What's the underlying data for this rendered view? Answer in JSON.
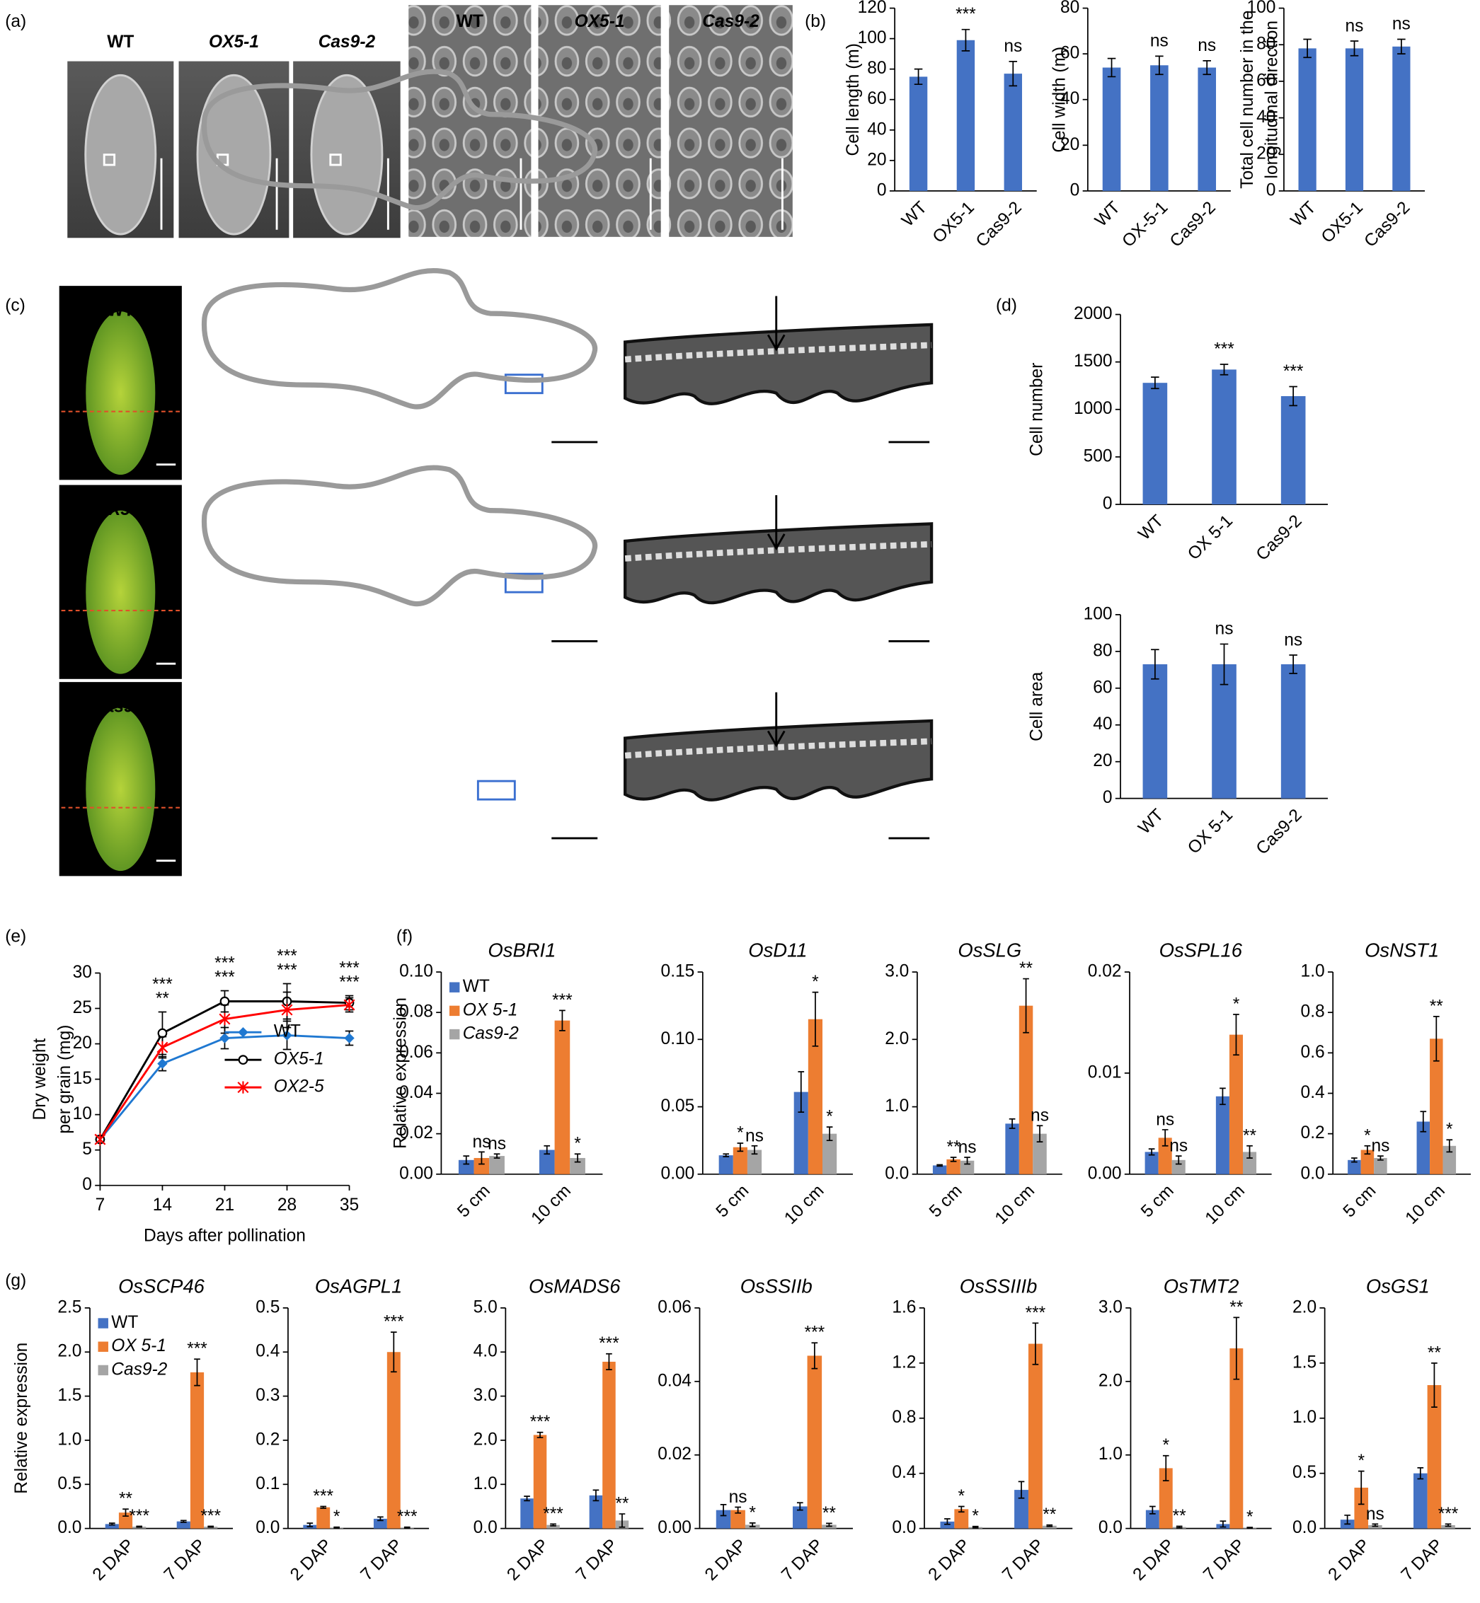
{
  "panel_labels": [
    "(a)",
    "(b)",
    "(c)",
    "(d)",
    "(e)",
    "(f)",
    "(g)"
  ],
  "panel_a": {
    "labels": [
      "WT",
      "OX5-1",
      "Cas9-2"
    ]
  },
  "panel_c": {
    "labels": [
      "WT",
      "OX5-1",
      "Cas9-2"
    ]
  },
  "chart_data": [
    {
      "type": "bar",
      "ylabel": "Cell length (m)",
      "categories": [
        "WT",
        "OX5-1",
        "Cas9-2"
      ],
      "values": [
        75,
        99,
        77
      ],
      "errors": [
        5,
        7,
        8
      ],
      "annotations": [
        null,
        "***",
        "ns"
      ],
      "color": "#4472c4",
      "ylim": [
        0,
        120
      ],
      "yticks": [
        0,
        20,
        40,
        60,
        80,
        100,
        120
      ]
    },
    {
      "type": "bar",
      "ylabel": "Cell width (m)",
      "categories": [
        "WT",
        "OX-5-1",
        "Cas9-2"
      ],
      "values": [
        54,
        55,
        54
      ],
      "errors": [
        4,
        4,
        3
      ],
      "annotations": [
        null,
        "ns",
        "ns"
      ],
      "color": "#4472c4",
      "ylim": [
        0,
        80
      ],
      "yticks": [
        0,
        20,
        40,
        60,
        80
      ]
    },
    {
      "type": "bar",
      "ylabel": [
        "Total cell number in the",
        "longitudinal direction"
      ],
      "categories": [
        "WT",
        "OX5-1",
        "Cas9-2"
      ],
      "values": [
        78,
        78,
        79
      ],
      "errors": [
        5,
        4,
        4
      ],
      "annotations": [
        null,
        "ns",
        "ns"
      ],
      "color": "#4472c4",
      "ylim": [
        0,
        100
      ],
      "yticks": [
        0,
        20,
        40,
        60,
        80,
        100
      ]
    },
    {
      "type": "bar",
      "ylabel": "Cell number",
      "categories": [
        "WT",
        "OX 5-1",
        "Cas9-2"
      ],
      "values": [
        1280,
        1420,
        1140
      ],
      "errors": [
        60,
        55,
        100
      ],
      "annotations": [
        null,
        "***",
        "***"
      ],
      "color": "#4472c4",
      "ylim": [
        0,
        2000
      ],
      "yticks": [
        0,
        500,
        1000,
        1500,
        2000
      ]
    },
    {
      "type": "bar",
      "ylabel": "Cell area",
      "categories": [
        "WT",
        "OX 5-1",
        "Cas9-2"
      ],
      "values": [
        73,
        73,
        73
      ],
      "errors": [
        8,
        11,
        5
      ],
      "annotations": [
        null,
        "ns",
        "ns"
      ],
      "color": "#4472c4",
      "ylim": [
        0,
        100
      ],
      "yticks": [
        0,
        20,
        40,
        60,
        80,
        100
      ]
    },
    {
      "type": "line",
      "ylabel": [
        "Dry weight",
        "per grain (mg)"
      ],
      "xlabel": "Days after pollination",
      "x": [
        7,
        14,
        21,
        28,
        35
      ],
      "xlim": [
        7,
        35
      ],
      "xticks": [
        7,
        14,
        21,
        28,
        35
      ],
      "ylim": [
        0,
        30
      ],
      "yticks": [
        0,
        5,
        10,
        15,
        20,
        25,
        30
      ],
      "legend": "lower right",
      "series": [
        {
          "name": "WT",
          "color": "#1f78d1",
          "marker": "diamond",
          "values": [
            6.5,
            17.2,
            20.8,
            21.2,
            20.8
          ],
          "errors": [
            0.5,
            1,
            1.5,
            2,
            1
          ]
        },
        {
          "name": "OX5-1",
          "color": "#000000",
          "marker": "circle",
          "values": [
            6.5,
            21.5,
            26,
            26,
            25.8
          ],
          "errors": [
            0.5,
            3,
            1.5,
            2.5,
            1
          ],
          "annotations": [
            null,
            "***",
            "***",
            "***",
            "***"
          ]
        },
        {
          "name": "OX2-5",
          "color": "#ff0000",
          "marker": "star",
          "values": [
            6.5,
            19.5,
            23.5,
            24.8,
            25.5
          ],
          "errors": [
            0.5,
            1.5,
            2,
            2.5,
            1
          ],
          "annotations": [
            null,
            "**",
            "***",
            "***",
            "***"
          ]
        }
      ]
    },
    {
      "type": "grouped",
      "title": "OsBRI1",
      "ylabel": "Relative expression",
      "categories": [
        "5 cm",
        "10 cm"
      ],
      "legend": "upper left",
      "ylim": [
        0,
        0.1
      ],
      "yticks": [
        {
          "value": 0,
          "label": "0.00"
        },
        0.02,
        0.04,
        0.06,
        0.08,
        {
          "value": 0.1,
          "label": "0.10"
        }
      ],
      "series": [
        {
          "name": "WT",
          "color": "#4472c4",
          "values": [
            0.007,
            0.012
          ],
          "errors": [
            0.002,
            0.002
          ]
        },
        {
          "name": "OX 5-1",
          "color": "#ed7d31",
          "values": [
            0.008,
            0.076
          ],
          "errors": [
            0.003,
            0.005
          ],
          "annotations": [
            "ns",
            "***"
          ]
        },
        {
          "name": "Cas9-2",
          "color": "#a5a5a5",
          "values": [
            0.009,
            0.008
          ],
          "errors": [
            0.001,
            0.002
          ],
          "annotations": [
            "ns",
            "*"
          ]
        }
      ]
    },
    {
      "type": "grouped",
      "title": "OsD11",
      "categories": [
        "5 cm",
        "10 cm"
      ],
      "ylim": [
        0,
        0.15
      ],
      "yticks": [
        {
          "value": 0,
          "label": "0.00"
        },
        0.05,
        {
          "value": 0.1,
          "label": "0.10"
        },
        0.15
      ],
      "series": [
        {
          "color": "#4472c4",
          "values": [
            0.014,
            0.061
          ],
          "errors": [
            0.001,
            0.015
          ]
        },
        {
          "color": "#ed7d31",
          "values": [
            0.02,
            0.115
          ],
          "errors": [
            0.003,
            0.02
          ],
          "annotations": [
            "*",
            "*"
          ]
        },
        {
          "color": "#a5a5a5",
          "values": [
            0.018,
            0.03
          ],
          "errors": [
            0.003,
            0.005
          ],
          "annotations": [
            "ns",
            "*"
          ]
        }
      ]
    },
    {
      "type": "grouped",
      "title": "OsSLG",
      "categories": [
        "5 cm",
        "10 cm"
      ],
      "ylim": [
        0,
        3
      ],
      "yticks": [
        {
          "value": 0,
          "label": "0.0"
        },
        {
          "value": 1,
          "label": "1.0"
        },
        {
          "value": 2,
          "label": "2.0"
        },
        {
          "value": 3,
          "label": "3.0"
        }
      ],
      "series": [
        {
          "color": "#4472c4",
          "values": [
            0.13,
            0.75
          ],
          "errors": [
            0.01,
            0.07
          ]
        },
        {
          "color": "#ed7d31",
          "values": [
            0.22,
            2.5
          ],
          "errors": [
            0.03,
            0.4
          ],
          "annotations": [
            "**",
            "**"
          ]
        },
        {
          "color": "#a5a5a5",
          "values": [
            0.2,
            0.6
          ],
          "errors": [
            0.05,
            0.12
          ],
          "annotations": [
            "ns",
            "ns"
          ]
        }
      ]
    },
    {
      "type": "grouped",
      "title": "OsSPL16",
      "categories": [
        "5 cm",
        "10 cm"
      ],
      "ylim": [
        0,
        0.02
      ],
      "yticks": [
        {
          "value": 0,
          "label": "0.00"
        },
        0.01,
        0.02
      ],
      "series": [
        {
          "color": "#4472c4",
          "values": [
            0.0022,
            0.0077
          ],
          "errors": [
            0.0003,
            0.0008
          ]
        },
        {
          "color": "#ed7d31",
          "values": [
            0.0036,
            0.0138
          ],
          "errors": [
            0.0008,
            0.002
          ],
          "annotations": [
            "ns",
            "*"
          ]
        },
        {
          "color": "#a5a5a5",
          "values": [
            0.0014,
            0.0022
          ],
          "errors": [
            0.0004,
            0.0006
          ],
          "annotations": [
            "ns",
            "**"
          ]
        }
      ]
    },
    {
      "type": "grouped",
      "title": "OsNST1",
      "categories": [
        "5 cm",
        "10 cm"
      ],
      "ylim": [
        0,
        1
      ],
      "yticks": [
        {
          "value": 0,
          "label": "0.0"
        },
        0.2,
        0.4,
        0.6,
        0.8,
        {
          "value": 1,
          "label": "1.0"
        }
      ],
      "series": [
        {
          "color": "#4472c4",
          "values": [
            0.07,
            0.26
          ],
          "errors": [
            0.01,
            0.05
          ]
        },
        {
          "color": "#ed7d31",
          "values": [
            0.12,
            0.67
          ],
          "errors": [
            0.02,
            0.11
          ],
          "annotations": [
            "*",
            "**"
          ]
        },
        {
          "color": "#a5a5a5",
          "values": [
            0.08,
            0.14
          ],
          "errors": [
            0.01,
            0.03
          ],
          "annotations": [
            "ns",
            "*"
          ]
        }
      ]
    },
    {
      "type": "grouped",
      "title": "OsSCP46",
      "ylabel": "Relative expression",
      "categories": [
        "2 DAP",
        "7 DAP"
      ],
      "legend": "upper left",
      "ylim": [
        0,
        2.5
      ],
      "yticks": [
        {
          "value": 0,
          "label": "0.0"
        },
        0.5,
        {
          "value": 1,
          "label": "1.0"
        },
        1.5,
        {
          "value": 2,
          "label": "2.0"
        },
        2.5
      ],
      "series": [
        {
          "name": "WT",
          "color": "#4472c4",
          "values": [
            0.05,
            0.08
          ],
          "errors": [
            0.01,
            0.01
          ]
        },
        {
          "name": "OX 5-1",
          "color": "#ed7d31",
          "values": [
            0.18,
            1.77
          ],
          "errors": [
            0.04,
            0.15
          ],
          "annotations": [
            "**",
            "***"
          ]
        },
        {
          "name": "Cas9-2",
          "color": "#a5a5a5",
          "values": [
            0.02,
            0.02
          ],
          "errors": [
            0.005,
            0.005
          ],
          "annotations": [
            "***",
            "***"
          ]
        }
      ]
    },
    {
      "type": "grouped",
      "title": "OsAGPL1",
      "categories": [
        "2 DAP",
        "7 DAP"
      ],
      "ylim": [
        0,
        0.5
      ],
      "yticks": [
        {
          "value": 0,
          "label": "0.0"
        },
        0.1,
        0.2,
        0.3,
        0.4,
        0.5
      ],
      "series": [
        {
          "color": "#4472c4",
          "values": [
            0.008,
            0.022
          ],
          "errors": [
            0.004,
            0.004
          ]
        },
        {
          "color": "#ed7d31",
          "values": [
            0.048,
            0.4
          ],
          "errors": [
            0.002,
            0.045
          ],
          "annotations": [
            "***",
            "***"
          ]
        },
        {
          "color": "#a5a5a5",
          "values": [
            0.002,
            0.002
          ],
          "errors": [
            0.001,
            0.001
          ],
          "annotations": [
            "*",
            "***"
          ]
        }
      ]
    },
    {
      "type": "grouped",
      "title": "OsMADS6",
      "categories": [
        "2 DAP",
        "7 DAP"
      ],
      "ylim": [
        0,
        5
      ],
      "yticks": [
        {
          "value": 0,
          "label": "0.0"
        },
        {
          "value": 1,
          "label": "1.0"
        },
        {
          "value": 2,
          "label": "2.0"
        },
        {
          "value": 3,
          "label": "3.0"
        },
        {
          "value": 4,
          "label": "4.0"
        },
        {
          "value": 5,
          "label": "5.0"
        }
      ],
      "series": [
        {
          "color": "#4472c4",
          "values": [
            0.68,
            0.75
          ],
          "errors": [
            0.05,
            0.12
          ]
        },
        {
          "color": "#ed7d31",
          "values": [
            2.12,
            3.78
          ],
          "errors": [
            0.06,
            0.18
          ],
          "annotations": [
            "***",
            "***"
          ]
        },
        {
          "color": "#a5a5a5",
          "values": [
            0.08,
            0.18
          ],
          "errors": [
            0.02,
            0.15
          ],
          "annotations": [
            "***",
            "**"
          ]
        }
      ]
    },
    {
      "type": "grouped",
      "title": "OsSSIIb",
      "categories": [
        "2 DAP",
        "7 DAP"
      ],
      "ylim": [
        0,
        0.06
      ],
      "yticks": [
        {
          "value": 0,
          "label": "0.00"
        },
        0.02,
        0.04,
        0.06
      ],
      "series": [
        {
          "color": "#4472c4",
          "values": [
            0.005,
            0.006
          ],
          "errors": [
            0.0015,
            0.001
          ]
        },
        {
          "color": "#ed7d31",
          "values": [
            0.005,
            0.047
          ],
          "errors": [
            0.0008,
            0.0035
          ],
          "annotations": [
            "ns",
            "***"
          ]
        },
        {
          "color": "#a5a5a5",
          "values": [
            0.001,
            0.001
          ],
          "errors": [
            0.0005,
            0.0004
          ],
          "annotations": [
            "*",
            "**"
          ]
        }
      ]
    },
    {
      "type": "grouped",
      "title": "OsSSIIIb",
      "categories": [
        "2 DAP",
        "7 DAP"
      ],
      "ylim": [
        0,
        1.6
      ],
      "yticks": [
        {
          "value": 0,
          "label": "0.0"
        },
        0.4,
        0.8,
        1.2,
        1.6
      ],
      "series": [
        {
          "color": "#4472c4",
          "values": [
            0.05,
            0.28
          ],
          "errors": [
            0.02,
            0.06
          ]
        },
        {
          "color": "#ed7d31",
          "values": [
            0.14,
            1.34
          ],
          "errors": [
            0.02,
            0.15
          ],
          "annotations": [
            "*",
            "***"
          ]
        },
        {
          "color": "#a5a5a5",
          "values": [
            0.01,
            0.02
          ],
          "errors": [
            0.005,
            0.005
          ],
          "annotations": [
            "*",
            "**"
          ]
        }
      ]
    },
    {
      "type": "grouped",
      "title": "OsTMT2",
      "categories": [
        "2 DAP",
        "7 DAP"
      ],
      "ylim": [
        0,
        3
      ],
      "yticks": [
        {
          "value": 0,
          "label": "0.0"
        },
        {
          "value": 1,
          "label": "1.0"
        },
        {
          "value": 2,
          "label": "2.0"
        },
        {
          "value": 3,
          "label": "3.0"
        }
      ],
      "series": [
        {
          "color": "#4472c4",
          "values": [
            0.25,
            0.06
          ],
          "errors": [
            0.05,
            0.04
          ]
        },
        {
          "color": "#ed7d31",
          "values": [
            0.82,
            2.45
          ],
          "errors": [
            0.17,
            0.42
          ],
          "annotations": [
            "*",
            "**"
          ]
        },
        {
          "color": "#a5a5a5",
          "values": [
            0.02,
            0.01
          ],
          "errors": [
            0.01,
            0.005
          ],
          "annotations": [
            "**",
            "*"
          ]
        }
      ]
    },
    {
      "type": "grouped",
      "title": "OsGS1",
      "categories": [
        "2 DAP",
        "7 DAP"
      ],
      "ylim": [
        0,
        2
      ],
      "yticks": [
        {
          "value": 0,
          "label": "0.0"
        },
        0.5,
        {
          "value": 1,
          "label": "1.0"
        },
        1.5,
        {
          "value": 2,
          "label": "2.0"
        }
      ],
      "series": [
        {
          "color": "#4472c4",
          "values": [
            0.08,
            0.5
          ],
          "errors": [
            0.04,
            0.05
          ]
        },
        {
          "color": "#ed7d31",
          "values": [
            0.37,
            1.3
          ],
          "errors": [
            0.15,
            0.2
          ],
          "annotations": [
            "*",
            "**"
          ]
        },
        {
          "color": "#a5a5a5",
          "values": [
            0.03,
            0.03
          ],
          "errors": [
            0.01,
            0.01
          ],
          "annotations": [
            "ns",
            "***"
          ]
        }
      ]
    }
  ]
}
